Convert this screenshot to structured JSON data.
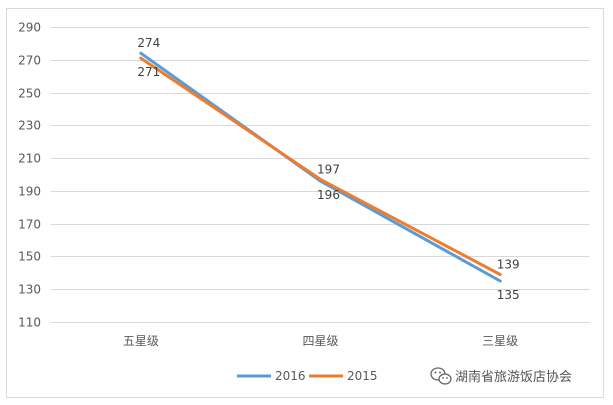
{
  "chart_data": {
    "type": "line",
    "categories": [
      "五星级",
      "四星级",
      "三星级"
    ],
    "series": [
      {
        "name": "2016",
        "values": [
          274,
          196,
          135
        ],
        "color": "#5b9bd5"
      },
      {
        "name": "2015",
        "values": [
          271,
          197,
          139
        ],
        "color": "#ed7d31"
      }
    ],
    "title": "",
    "xlabel": "",
    "ylabel": "",
    "ylim": [
      110,
      290
    ],
    "yticks": [
      110,
      130,
      150,
      170,
      190,
      210,
      230,
      250,
      270,
      290
    ],
    "grid": true,
    "legend": "bottom"
  },
  "watermark": {
    "text": "湖南省旅游饭店协会",
    "icon": "wechat-icon"
  }
}
